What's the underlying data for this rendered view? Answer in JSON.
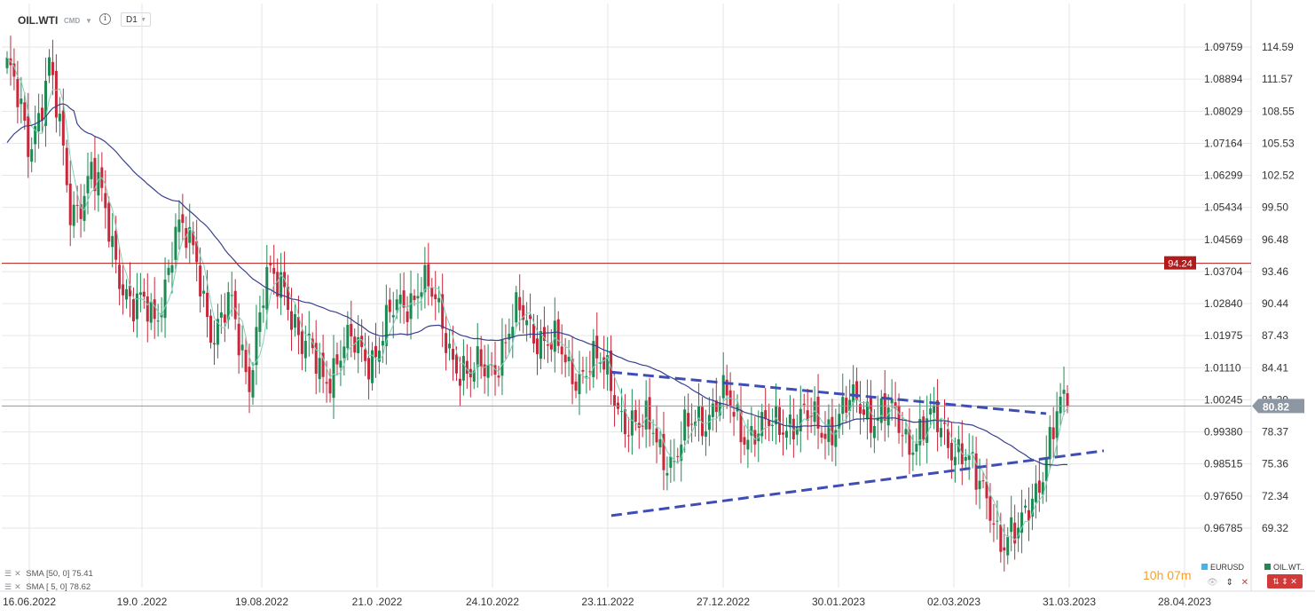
{
  "toolbar": {
    "symbol": "OIL.WTI",
    "type_badge": "CMD",
    "timeframe": "D1"
  },
  "legend": {
    "sma50_label": "SMA [50, 0]",
    "sma50_value": "75.41",
    "sma5_label": "SMA [ 5, 0]",
    "sma5_value": "78.62"
  },
  "footer": {
    "countdown_hours": "10h",
    "countdown_minutes": "07m",
    "eurusd_label": "EURUSD",
    "oilwti_label": "OIL.WT.."
  },
  "chart_data": {
    "type": "candlestick",
    "x_tick_labels": [
      "16.06.2022",
      "19.0 .2022",
      "19.08.2022",
      "21.0 .2022",
      "24.10.2022",
      "23.11.2022",
      "27.12.2022",
      "30.01.2023",
      "02.03.2023",
      "31.03.2023",
      "28.04.2023"
    ],
    "y_axis_right": {
      "ticks": [
        114.59,
        111.57,
        108.55,
        105.53,
        102.52,
        99.5,
        96.48,
        93.46,
        90.44,
        87.43,
        84.41,
        81.39,
        78.37,
        75.36,
        72.34,
        69.32
      ],
      "tick_labels": [
        "114.59",
        "111.57",
        "108.55",
        "105.53",
        "102.52",
        "99.50",
        "96.48",
        "93.46",
        "90.44",
        "87.43",
        "84.41",
        "81.39",
        "78.37",
        "75.36",
        "72.34",
        "69.32"
      ]
    },
    "y_axis_left": {
      "tick_labels": [
        "1.09759",
        "1.08894",
        "1.08029",
        "1.07164",
        "1.06299",
        "1.05434",
        "1.04569",
        "1.03704",
        "1.02840",
        "1.01975",
        "1.01110",
        "1.00245",
        "0.99380",
        "0.98515",
        "0.97650",
        "0.96785"
      ]
    },
    "horizontal_lines": [
      {
        "price": 94.24,
        "label": "94.24",
        "color": "#b01c1c"
      },
      {
        "price": 80.82,
        "label": "80.82",
        "color": "#8c97a3"
      }
    ],
    "series": [
      {
        "name": "SMA [50, 0]",
        "color": "#38408f"
      },
      {
        "name": "SMA [ 5, 0]",
        "color": "#7fd1b8"
      }
    ],
    "trendlines": [
      {
        "from": [
          "23.11.2022",
          84.0
        ],
        "to": [
          "31.03.2023",
          80.1
        ],
        "color": "#3f4eb5",
        "style": "dashed"
      },
      {
        "from": [
          "23.11.2022",
          70.5
        ],
        "to": [
          "28.04.2023",
          76.6
        ],
        "color": "#3f4eb5",
        "style": "dashed"
      }
    ],
    "colors": {
      "up": "#1c8a52",
      "down": "#c8283b",
      "grid": "#e6e6e6"
    },
    "grid": true,
    "last_price": 80.82
  }
}
